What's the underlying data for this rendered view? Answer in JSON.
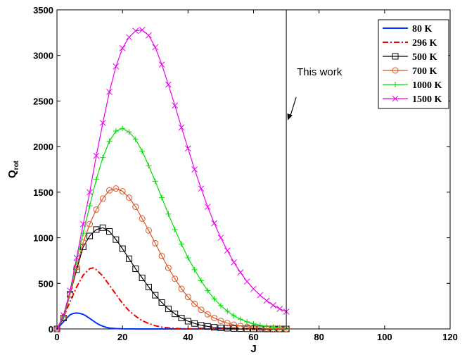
{
  "chart_data": {
    "type": "line",
    "xlabel": "J",
    "ylabel_main": "Q",
    "ylabel_sub": "rot",
    "xlim": [
      0,
      120
    ],
    "ylim": [
      0,
      3500
    ],
    "x_ticks": [
      0,
      20,
      40,
      60,
      80,
      100,
      120
    ],
    "y_ticks": [
      0,
      500,
      1000,
      1500,
      2000,
      2500,
      3000,
      3500
    ],
    "grid": false,
    "legend_position": "top-right",
    "annotation": {
      "text": "This work",
      "x_line": 70,
      "arrow_to": [
        70,
        2250
      ]
    },
    "series": [
      {
        "name": "80 K",
        "color": "#0033ff",
        "marker": "none",
        "dash": "solid",
        "x": [
          0,
          1,
          2,
          3,
          4,
          5,
          6,
          7,
          8,
          9,
          10,
          11,
          12,
          13,
          14,
          15,
          16,
          18,
          20,
          25,
          30,
          40,
          50,
          60,
          70
        ],
        "y": [
          0,
          40,
          80,
          120,
          155,
          170,
          175,
          170,
          160,
          140,
          115,
          90,
          65,
          45,
          30,
          18,
          10,
          4,
          1,
          0,
          0,
          0,
          0,
          0,
          0
        ]
      },
      {
        "name": "296 K",
        "color": "#ee0000",
        "marker": "none",
        "dash": "dashdot",
        "x": [
          0,
          2,
          4,
          6,
          8,
          10,
          11,
          12,
          14,
          16,
          18,
          20,
          22,
          24,
          26,
          28,
          30,
          32,
          34,
          36,
          38,
          40,
          45,
          50,
          60,
          70
        ],
        "y": [
          0,
          130,
          300,
          460,
          590,
          660,
          670,
          650,
          580,
          480,
          380,
          280,
          200,
          140,
          90,
          60,
          35,
          20,
          12,
          6,
          3,
          1,
          0,
          0,
          0,
          0
        ]
      },
      {
        "name": "500 K",
        "color": "#000000",
        "marker": "square",
        "dash": "solid",
        "x": [
          0,
          2,
          4,
          6,
          8,
          10,
          12,
          14,
          16,
          18,
          20,
          22,
          24,
          26,
          28,
          30,
          32,
          34,
          36,
          38,
          40,
          42,
          44,
          46,
          48,
          50,
          52,
          54,
          56,
          58,
          60,
          62,
          64,
          66,
          68,
          70
        ],
        "y": [
          0,
          120,
          380,
          650,
          900,
          1020,
          1090,
          1110,
          1070,
          980,
          880,
          770,
          660,
          560,
          460,
          370,
          290,
          220,
          165,
          120,
          85,
          60,
          40,
          28,
          18,
          12,
          8,
          5,
          3,
          2,
          1,
          1,
          0,
          0,
          0,
          0
        ]
      },
      {
        "name": "700 K",
        "color": "#dd5522",
        "marker": "circle",
        "dash": "solid",
        "x": [
          0,
          2,
          4,
          6,
          8,
          10,
          12,
          14,
          16,
          18,
          20,
          22,
          24,
          26,
          28,
          30,
          32,
          34,
          36,
          38,
          40,
          42,
          44,
          46,
          48,
          50,
          52,
          54,
          56,
          58,
          60,
          62,
          64,
          66,
          68,
          70
        ],
        "y": [
          0,
          130,
          380,
          680,
          950,
          1150,
          1310,
          1430,
          1520,
          1540,
          1510,
          1440,
          1340,
          1210,
          1080,
          940,
          800,
          670,
          550,
          440,
          350,
          275,
          210,
          160,
          120,
          88,
          64,
          46,
          32,
          22,
          15,
          10,
          6,
          4,
          2,
          1
        ]
      },
      {
        "name": "1000 K",
        "color": "#00dd00",
        "marker": "plus",
        "dash": "solid",
        "x": [
          0,
          2,
          4,
          6,
          8,
          10,
          12,
          14,
          16,
          18,
          20,
          22,
          24,
          26,
          28,
          30,
          32,
          34,
          36,
          38,
          40,
          42,
          44,
          46,
          48,
          50,
          52,
          54,
          56,
          58,
          60,
          62,
          64,
          66,
          68,
          70
        ],
        "y": [
          0,
          140,
          400,
          750,
          1050,
          1350,
          1640,
          1880,
          2060,
          2170,
          2200,
          2160,
          2080,
          1950,
          1790,
          1620,
          1440,
          1260,
          1090,
          930,
          780,
          650,
          530,
          420,
          330,
          255,
          195,
          145,
          107,
          78,
          56,
          40,
          28,
          19,
          13,
          9
        ]
      },
      {
        "name": "1500 K",
        "color": "#ee00ee",
        "marker": "x",
        "dash": "solid",
        "x": [
          0,
          2,
          4,
          6,
          8,
          10,
          12,
          14,
          16,
          18,
          20,
          22,
          24,
          26,
          28,
          30,
          32,
          34,
          36,
          38,
          40,
          42,
          44,
          46,
          48,
          50,
          52,
          54,
          56,
          58,
          60,
          62,
          64,
          66,
          68,
          70
        ],
        "y": [
          0,
          150,
          420,
          780,
          1150,
          1500,
          1900,
          2260,
          2600,
          2880,
          3080,
          3200,
          3270,
          3280,
          3220,
          3090,
          2900,
          2680,
          2450,
          2210,
          1980,
          1750,
          1540,
          1340,
          1160,
          1000,
          860,
          730,
          620,
          520,
          440,
          370,
          310,
          260,
          220,
          190
        ]
      }
    ]
  }
}
